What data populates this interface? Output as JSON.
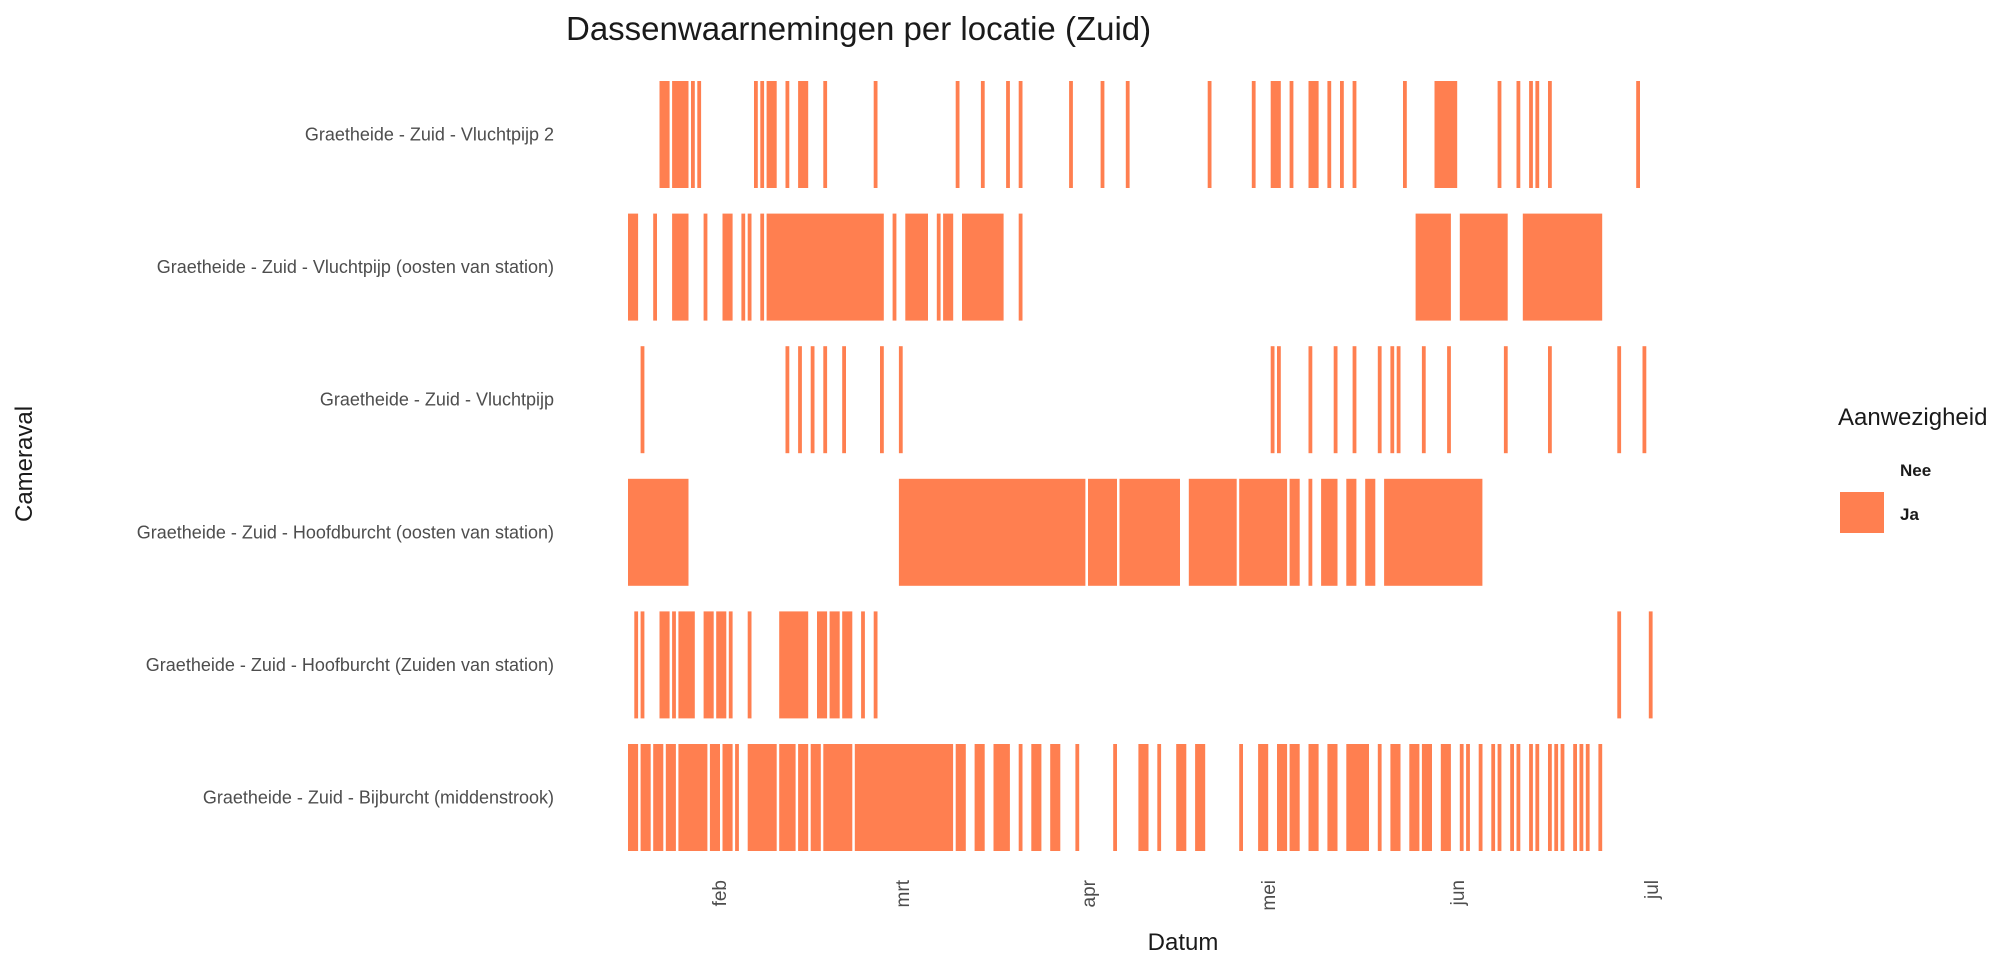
{
  "chart_data": {
    "type": "heatmap",
    "title": "Dassenwaarnemingen per locatie (Zuid)",
    "xlabel": "Datum",
    "ylabel": "Cameraval",
    "x_axis": {
      "ticks": [
        "feb",
        "mrt",
        "apr",
        "mei",
        "jun",
        "jul"
      ],
      "start": "2023-01-27",
      "end": "2023-07-21"
    },
    "fill_color": "#FF7F50",
    "legend": {
      "title": "Aanwezigheid",
      "placement": "right",
      "entries": [
        {
          "label": "Nee",
          "color": "#FFFFFF"
        },
        {
          "label": "Ja",
          "color": "#FF7F50"
        }
      ]
    },
    "categories": [
      "Graetheide - Zuid - Vluchtpijp 2",
      "Graetheide - Zuid - Vluchtpijp (oosten van station)",
      "Graetheide - Zuid - Vluchtpijp",
      "Graetheide - Zuid - Hoofdburcht (oosten van station)",
      "Graetheide - Zuid - Hoofburcht (Zuiden van station)",
      "Graetheide - Zuid - Bijburcht (middenstrook)"
    ],
    "series": [
      {
        "category": "Graetheide - Zuid - Vluchtpijp 2",
        "presence_ja": [
          [
            "2023-02-01",
            "2023-02-02"
          ],
          [
            "2023-02-03",
            "2023-02-05"
          ],
          [
            "2023-02-06",
            "2023-02-06"
          ],
          [
            "2023-02-07",
            "2023-02-07"
          ],
          [
            "2023-02-16",
            "2023-02-16"
          ],
          [
            "2023-02-17",
            "2023-02-17"
          ],
          [
            "2023-02-18",
            "2023-02-19"
          ],
          [
            "2023-02-21",
            "2023-02-21"
          ],
          [
            "2023-02-23",
            "2023-02-24"
          ],
          [
            "2023-02-27",
            "2023-02-27"
          ],
          [
            "2023-03-07",
            "2023-03-07"
          ],
          [
            "2023-03-20",
            "2023-03-20"
          ],
          [
            "2023-03-24",
            "2023-03-24"
          ],
          [
            "2023-03-28",
            "2023-03-28"
          ],
          [
            "2023-03-30",
            "2023-03-30"
          ],
          [
            "2023-04-07",
            "2023-04-07"
          ],
          [
            "2023-04-12",
            "2023-04-12"
          ],
          [
            "2023-04-16",
            "2023-04-16"
          ],
          [
            "2023-04-29",
            "2023-04-29"
          ],
          [
            "2023-05-06",
            "2023-05-06"
          ],
          [
            "2023-05-09",
            "2023-05-10"
          ],
          [
            "2023-05-12",
            "2023-05-12"
          ],
          [
            "2023-05-15",
            "2023-05-16"
          ],
          [
            "2023-05-18",
            "2023-05-18"
          ],
          [
            "2023-05-20",
            "2023-05-20"
          ],
          [
            "2023-05-22",
            "2023-05-22"
          ],
          [
            "2023-05-30",
            "2023-05-30"
          ],
          [
            "2023-06-04",
            "2023-06-07"
          ],
          [
            "2023-06-14",
            "2023-06-14"
          ],
          [
            "2023-06-17",
            "2023-06-17"
          ],
          [
            "2023-06-19",
            "2023-06-19"
          ],
          [
            "2023-06-20",
            "2023-06-20"
          ],
          [
            "2023-06-22",
            "2023-06-22"
          ],
          [
            "2023-07-06",
            "2023-07-06"
          ]
        ]
      },
      {
        "category": "Graetheide - Zuid - Vluchtpijp (oosten van station)",
        "presence_ja": [
          [
            "2023-01-27",
            "2023-01-28"
          ],
          [
            "2023-01-31",
            "2023-01-31"
          ],
          [
            "2023-02-03",
            "2023-02-05"
          ],
          [
            "2023-02-08",
            "2023-02-08"
          ],
          [
            "2023-02-11",
            "2023-02-12"
          ],
          [
            "2023-02-14",
            "2023-02-14"
          ],
          [
            "2023-02-15",
            "2023-02-15"
          ],
          [
            "2023-02-17",
            "2023-02-17"
          ],
          [
            "2023-02-18",
            "2023-03-08"
          ],
          [
            "2023-03-10",
            "2023-03-10"
          ],
          [
            "2023-03-12",
            "2023-03-15"
          ],
          [
            "2023-03-17",
            "2023-03-17"
          ],
          [
            "2023-03-18",
            "2023-03-19"
          ],
          [
            "2023-03-21",
            "2023-03-27"
          ],
          [
            "2023-03-30",
            "2023-03-30"
          ],
          [
            "2023-06-01",
            "2023-06-06"
          ],
          [
            "2023-06-08",
            "2023-06-15"
          ],
          [
            "2023-06-18",
            "2023-06-30"
          ]
        ]
      },
      {
        "category": "Graetheide - Zuid - Vluchtpijp",
        "presence_ja": [
          [
            "2023-01-29",
            "2023-01-29"
          ],
          [
            "2023-02-21",
            "2023-02-21"
          ],
          [
            "2023-02-23",
            "2023-02-23"
          ],
          [
            "2023-02-25",
            "2023-02-25"
          ],
          [
            "2023-02-27",
            "2023-02-27"
          ],
          [
            "2023-03-02",
            "2023-03-02"
          ],
          [
            "2023-03-08",
            "2023-03-08"
          ],
          [
            "2023-03-11",
            "2023-03-11"
          ],
          [
            "2023-05-09",
            "2023-05-09"
          ],
          [
            "2023-05-10",
            "2023-05-10"
          ],
          [
            "2023-05-15",
            "2023-05-15"
          ],
          [
            "2023-05-19",
            "2023-05-19"
          ],
          [
            "2023-05-22",
            "2023-05-22"
          ],
          [
            "2023-05-26",
            "2023-05-26"
          ],
          [
            "2023-05-28",
            "2023-05-28"
          ],
          [
            "2023-05-29",
            "2023-05-29"
          ],
          [
            "2023-06-02",
            "2023-06-02"
          ],
          [
            "2023-06-06",
            "2023-06-06"
          ],
          [
            "2023-06-15",
            "2023-06-15"
          ],
          [
            "2023-06-22",
            "2023-06-22"
          ],
          [
            "2023-07-03",
            "2023-07-03"
          ],
          [
            "2023-07-07",
            "2023-07-07"
          ]
        ]
      },
      {
        "category": "Graetheide - Zuid - Hoofdburcht (oosten van station)",
        "presence_ja": [
          [
            "2023-01-27",
            "2023-02-05"
          ],
          [
            "2023-03-11",
            "2023-04-09"
          ],
          [
            "2023-04-10",
            "2023-04-14"
          ],
          [
            "2023-04-15",
            "2023-04-24"
          ],
          [
            "2023-04-26",
            "2023-05-03"
          ],
          [
            "2023-05-04",
            "2023-05-11"
          ],
          [
            "2023-05-12",
            "2023-05-13"
          ],
          [
            "2023-05-15",
            "2023-05-15"
          ],
          [
            "2023-05-17",
            "2023-05-19"
          ],
          [
            "2023-05-21",
            "2023-05-22"
          ],
          [
            "2023-05-24",
            "2023-05-25"
          ],
          [
            "2023-05-27",
            "2023-06-11"
          ]
        ]
      },
      {
        "category": "Graetheide - Zuid - Hoofburcht (Zuiden van station)",
        "presence_ja": [
          [
            "2023-01-28",
            "2023-01-28"
          ],
          [
            "2023-01-29",
            "2023-01-29"
          ],
          [
            "2023-02-01",
            "2023-02-02"
          ],
          [
            "2023-02-03",
            "2023-02-03"
          ],
          [
            "2023-02-04",
            "2023-02-06"
          ],
          [
            "2023-02-08",
            "2023-02-09"
          ],
          [
            "2023-02-10",
            "2023-02-11"
          ],
          [
            "2023-02-12",
            "2023-02-12"
          ],
          [
            "2023-02-15",
            "2023-02-15"
          ],
          [
            "2023-02-20",
            "2023-02-24"
          ],
          [
            "2023-02-26",
            "2023-02-27"
          ],
          [
            "2023-02-28",
            "2023-03-01"
          ],
          [
            "2023-03-02",
            "2023-03-03"
          ],
          [
            "2023-03-05",
            "2023-03-05"
          ],
          [
            "2023-03-07",
            "2023-03-07"
          ],
          [
            "2023-07-03",
            "2023-07-03"
          ],
          [
            "2023-07-08",
            "2023-07-08"
          ]
        ]
      },
      {
        "category": "Graetheide - Zuid - Bijburcht (middenstrook)",
        "presence_ja": [
          [
            "2023-01-27",
            "2023-01-28"
          ],
          [
            "2023-01-29",
            "2023-01-30"
          ],
          [
            "2023-01-31",
            "2023-02-01"
          ],
          [
            "2023-02-02",
            "2023-02-03"
          ],
          [
            "2023-02-04",
            "2023-02-08"
          ],
          [
            "2023-02-09",
            "2023-02-10"
          ],
          [
            "2023-02-11",
            "2023-02-12"
          ],
          [
            "2023-02-13",
            "2023-02-13"
          ],
          [
            "2023-02-15",
            "2023-02-19"
          ],
          [
            "2023-02-20",
            "2023-02-22"
          ],
          [
            "2023-02-23",
            "2023-02-24"
          ],
          [
            "2023-02-25",
            "2023-02-26"
          ],
          [
            "2023-02-27",
            "2023-03-03"
          ],
          [
            "2023-03-04",
            "2023-03-19"
          ],
          [
            "2023-03-20",
            "2023-03-21"
          ],
          [
            "2023-03-23",
            "2023-03-24"
          ],
          [
            "2023-03-26",
            "2023-03-28"
          ],
          [
            "2023-03-30",
            "2023-03-30"
          ],
          [
            "2023-04-01",
            "2023-04-02"
          ],
          [
            "2023-04-04",
            "2023-04-05"
          ],
          [
            "2023-04-08",
            "2023-04-08"
          ],
          [
            "2023-04-14",
            "2023-04-14"
          ],
          [
            "2023-04-18",
            "2023-04-19"
          ],
          [
            "2023-04-21",
            "2023-04-21"
          ],
          [
            "2023-04-24",
            "2023-04-25"
          ],
          [
            "2023-04-27",
            "2023-04-28"
          ],
          [
            "2023-05-04",
            "2023-05-04"
          ],
          [
            "2023-05-07",
            "2023-05-08"
          ],
          [
            "2023-05-10",
            "2023-05-11"
          ],
          [
            "2023-05-12",
            "2023-05-13"
          ],
          [
            "2023-05-15",
            "2023-05-16"
          ],
          [
            "2023-05-18",
            "2023-05-19"
          ],
          [
            "2023-05-21",
            "2023-05-24"
          ],
          [
            "2023-05-26",
            "2023-05-26"
          ],
          [
            "2023-05-28",
            "2023-05-29"
          ],
          [
            "2023-05-31",
            "2023-06-01"
          ],
          [
            "2023-06-02",
            "2023-06-03"
          ],
          [
            "2023-06-05",
            "2023-06-06"
          ],
          [
            "2023-06-08",
            "2023-06-08"
          ],
          [
            "2023-06-09",
            "2023-06-09"
          ],
          [
            "2023-06-11",
            "2023-06-11"
          ],
          [
            "2023-06-13",
            "2023-06-13"
          ],
          [
            "2023-06-14",
            "2023-06-14"
          ],
          [
            "2023-06-16",
            "2023-06-16"
          ],
          [
            "2023-06-17",
            "2023-06-17"
          ],
          [
            "2023-06-19",
            "2023-06-19"
          ],
          [
            "2023-06-20",
            "2023-06-20"
          ],
          [
            "2023-06-22",
            "2023-06-22"
          ],
          [
            "2023-06-23",
            "2023-06-23"
          ],
          [
            "2023-06-24",
            "2023-06-24"
          ],
          [
            "2023-06-26",
            "2023-06-26"
          ],
          [
            "2023-06-27",
            "2023-06-27"
          ],
          [
            "2023-06-28",
            "2023-06-28"
          ],
          [
            "2023-06-30",
            "2023-06-30"
          ]
        ]
      }
    ]
  }
}
